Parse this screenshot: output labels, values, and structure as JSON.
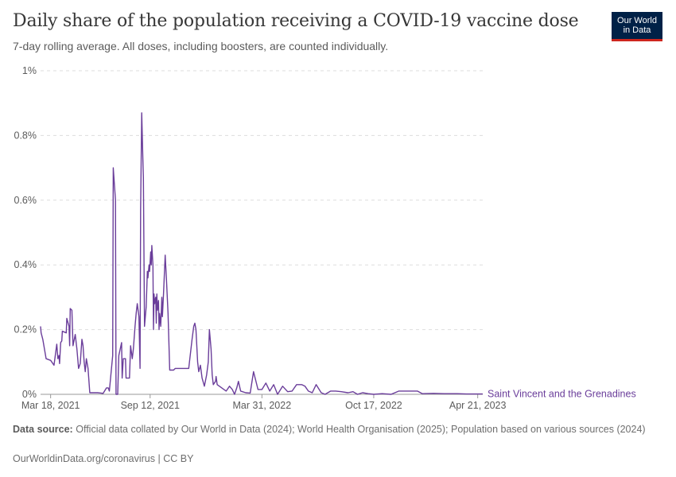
{
  "header": {
    "title": "Daily share of the population receiving a COVID-19 vaccine dose",
    "subtitle": "7-day rolling average. All doses, including boosters, are counted individually."
  },
  "logo": {
    "line1": "Our World",
    "line2": "in Data"
  },
  "source": {
    "label": "Data source:",
    "text": "Official data collated by Our World in Data (2024); World Health Organisation (2025); Population based on various sources (2024)"
  },
  "footer": {
    "text": "OurWorldinData.org/coronavirus | CC BY"
  },
  "colors": {
    "series": "#6a3d9a",
    "grid": "#dddddd",
    "axis": "#999999",
    "text": "#5b5b5b"
  },
  "chart_data": {
    "type": "line",
    "title": "Daily share of the population receiving a COVID-19 vaccine dose",
    "ylim": [
      0,
      1
    ],
    "y_ticks": [
      0,
      0.2,
      0.4,
      0.6,
      0.8,
      1
    ],
    "y_tick_labels": [
      "0%",
      "0.2%",
      "0.4%",
      "0.6%",
      "0.8%",
      "1%"
    ],
    "x_range": [
      "2021-02-28",
      "2023-04-30"
    ],
    "x_ticks": [
      "2021-03-18",
      "2021-09-12",
      "2022-03-31",
      "2022-10-17",
      "2023-04-21"
    ],
    "x_tick_labels": [
      "Mar 18, 2021",
      "Sep 12, 2021",
      "Mar 31, 2022",
      "Oct 17, 2022",
      "Apr 21, 2023"
    ],
    "grid": "horizontal dashed",
    "series": [
      {
        "name": "Saint Vincent and the Grenadines",
        "points": [
          [
            "2021-02-28",
            0.21
          ],
          [
            "2021-03-01",
            0.19
          ],
          [
            "2021-03-04",
            0.17
          ],
          [
            "2021-03-10",
            0.11
          ],
          [
            "2021-03-18",
            0.105
          ],
          [
            "2021-03-24",
            0.09
          ],
          [
            "2021-03-29",
            0.155
          ],
          [
            "2021-03-31",
            0.11
          ],
          [
            "2021-04-02",
            0.12
          ],
          [
            "2021-04-03",
            0.095
          ],
          [
            "2021-04-05",
            0.16
          ],
          [
            "2021-04-07",
            0.165
          ],
          [
            "2021-04-08",
            0.195
          ],
          [
            "2021-04-15",
            0.19
          ],
          [
            "2021-04-16",
            0.235
          ],
          [
            "2021-04-20",
            0.21
          ],
          [
            "2021-04-21",
            0.15
          ],
          [
            "2021-04-22",
            0.265
          ],
          [
            "2021-04-25",
            0.26
          ],
          [
            "2021-04-27",
            0.15
          ],
          [
            "2021-05-01",
            0.185
          ],
          [
            "2021-05-04",
            0.14
          ],
          [
            "2021-05-07",
            0.08
          ],
          [
            "2021-05-10",
            0.095
          ],
          [
            "2021-05-13",
            0.17
          ],
          [
            "2021-05-15",
            0.15
          ],
          [
            "2021-05-17",
            0.1
          ],
          [
            "2021-05-19",
            0.07
          ],
          [
            "2021-05-21",
            0.11
          ],
          [
            "2021-05-24",
            0.08
          ],
          [
            "2021-05-27",
            0.005
          ],
          [
            "2021-06-10",
            0.005
          ],
          [
            "2021-06-20",
            0.003
          ],
          [
            "2021-06-26",
            0.02
          ],
          [
            "2021-06-29",
            0.02
          ],
          [
            "2021-07-01",
            0.01
          ],
          [
            "2021-07-07",
            0.12
          ],
          [
            "2021-07-08",
            0.7
          ],
          [
            "2021-07-12",
            0.6
          ],
          [
            "2021-07-13",
            0.0
          ],
          [
            "2021-07-16",
            0.0
          ],
          [
            "2021-07-18",
            0.12
          ],
          [
            "2021-07-23",
            0.16
          ],
          [
            "2021-07-24",
            0.05
          ],
          [
            "2021-07-26",
            0.11
          ],
          [
            "2021-07-30",
            0.11
          ],
          [
            "2021-07-31",
            0.05
          ],
          [
            "2021-08-06",
            0.05
          ],
          [
            "2021-08-08",
            0.15
          ],
          [
            "2021-08-11",
            0.11
          ],
          [
            "2021-08-13",
            0.14
          ],
          [
            "2021-08-16",
            0.21
          ],
          [
            "2021-08-18",
            0.25
          ],
          [
            "2021-08-20",
            0.28
          ],
          [
            "2021-08-23",
            0.24
          ],
          [
            "2021-08-25",
            0.08
          ],
          [
            "2021-08-26",
            0.57
          ],
          [
            "2021-08-28",
            0.87
          ],
          [
            "2021-08-30",
            0.73
          ],
          [
            "2021-08-31",
            0.67
          ],
          [
            "2021-09-02",
            0.21
          ],
          [
            "2021-09-05",
            0.27
          ],
          [
            "2021-09-07",
            0.38
          ],
          [
            "2021-09-08",
            0.36
          ],
          [
            "2021-09-10",
            0.4
          ],
          [
            "2021-09-11",
            0.38
          ],
          [
            "2021-09-13",
            0.44
          ],
          [
            "2021-09-14",
            0.4
          ],
          [
            "2021-09-15",
            0.46
          ],
          [
            "2021-09-17",
            0.4
          ],
          [
            "2021-09-18",
            0.2
          ],
          [
            "2021-09-19",
            0.31
          ],
          [
            "2021-09-20",
            0.28
          ],
          [
            "2021-09-22",
            0.3
          ],
          [
            "2021-09-23",
            0.22
          ],
          [
            "2021-09-24",
            0.31
          ],
          [
            "2021-09-25",
            0.26
          ],
          [
            "2021-09-27",
            0.29
          ],
          [
            "2021-09-28",
            0.2
          ],
          [
            "2021-09-29",
            0.25
          ],
          [
            "2021-10-01",
            0.21
          ],
          [
            "2021-10-03",
            0.3
          ],
          [
            "2021-10-04",
            0.24
          ],
          [
            "2021-10-06",
            0.31
          ],
          [
            "2021-10-09",
            0.43
          ],
          [
            "2021-10-11",
            0.36
          ],
          [
            "2021-10-14",
            0.25
          ],
          [
            "2021-10-17",
            0.075
          ],
          [
            "2021-10-24",
            0.075
          ],
          [
            "2021-10-27",
            0.08
          ],
          [
            "2021-11-20",
            0.08
          ],
          [
            "2021-11-26",
            0.17
          ],
          [
            "2021-11-29",
            0.21
          ],
          [
            "2021-12-01",
            0.22
          ],
          [
            "2021-12-03",
            0.2
          ],
          [
            "2021-12-06",
            0.1
          ],
          [
            "2021-12-08",
            0.07
          ],
          [
            "2021-12-11",
            0.09
          ],
          [
            "2021-12-14",
            0.05
          ],
          [
            "2021-12-18",
            0.025
          ],
          [
            "2021-12-22",
            0.06
          ],
          [
            "2021-12-25",
            0.1
          ],
          [
            "2021-12-27",
            0.2
          ],
          [
            "2021-12-30",
            0.14
          ],
          [
            "2022-01-01",
            0.06
          ],
          [
            "2022-01-03",
            0.03
          ],
          [
            "2022-01-07",
            0.04
          ],
          [
            "2022-01-08",
            0.055
          ],
          [
            "2022-01-10",
            0.03
          ],
          [
            "2022-01-14",
            0.025
          ],
          [
            "2022-01-22",
            0.015
          ],
          [
            "2022-01-26",
            0.01
          ],
          [
            "2022-02-01",
            0.025
          ],
          [
            "2022-02-06",
            0.015
          ],
          [
            "2022-02-10",
            0.0
          ],
          [
            "2022-02-14",
            0.02
          ],
          [
            "2022-02-17",
            0.04
          ],
          [
            "2022-02-21",
            0.01
          ],
          [
            "2022-03-02",
            0.005
          ],
          [
            "2022-03-10",
            0.004
          ],
          [
            "2022-03-16",
            0.07
          ],
          [
            "2022-03-24",
            0.015
          ],
          [
            "2022-03-31",
            0.015
          ],
          [
            "2022-04-07",
            0.035
          ],
          [
            "2022-04-14",
            0.01
          ],
          [
            "2022-04-21",
            0.03
          ],
          [
            "2022-04-28",
            0.0
          ],
          [
            "2022-05-07",
            0.025
          ],
          [
            "2022-05-16",
            0.008
          ],
          [
            "2022-05-24",
            0.01
          ],
          [
            "2022-06-01",
            0.03
          ],
          [
            "2022-06-10",
            0.03
          ],
          [
            "2022-06-16",
            0.025
          ],
          [
            "2022-06-22",
            0.01
          ],
          [
            "2022-06-29",
            0.005
          ],
          [
            "2022-07-06",
            0.03
          ],
          [
            "2022-07-15",
            0.005
          ],
          [
            "2022-07-22",
            0.0
          ],
          [
            "2022-08-01",
            0.01
          ],
          [
            "2022-08-10",
            0.01
          ],
          [
            "2022-08-20",
            0.008
          ],
          [
            "2022-09-01",
            0.005
          ],
          [
            "2022-09-10",
            0.008
          ],
          [
            "2022-09-18",
            0.0
          ],
          [
            "2022-09-27",
            0.005
          ],
          [
            "2022-10-07",
            0.002
          ],
          [
            "2022-10-17",
            0.0
          ],
          [
            "2022-11-01",
            0.002
          ],
          [
            "2022-11-17",
            0.0
          ],
          [
            "2022-12-01",
            0.01
          ],
          [
            "2022-12-20",
            0.01
          ],
          [
            "2023-01-03",
            0.01
          ],
          [
            "2023-01-12",
            0.002
          ],
          [
            "2023-02-01",
            0.003
          ],
          [
            "2023-02-20",
            0.002
          ],
          [
            "2023-03-15",
            0.002
          ],
          [
            "2023-04-01",
            0.001
          ],
          [
            "2023-04-21",
            0.001
          ],
          [
            "2023-04-30",
            0.001
          ]
        ]
      }
    ]
  }
}
